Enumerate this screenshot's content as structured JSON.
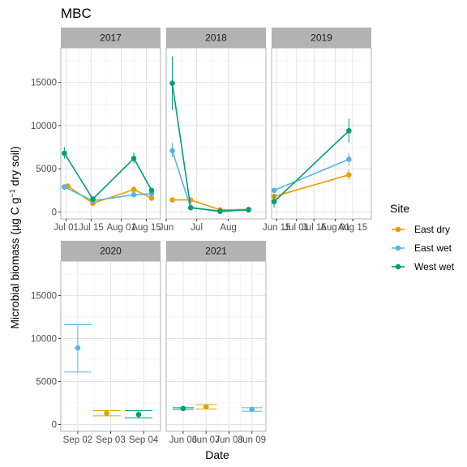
{
  "chart_data": {
    "type": "line",
    "title": "MBC",
    "xlabel": "Date",
    "ylabel": "Microbial biomass (µg C g⁻¹ dry soil)",
    "ylabel_parts": {
      "pre": "Microbial biomass (µg C g",
      "sup": "−1",
      "post": " dry soil)"
    },
    "ylim": [
      -800,
      19000
    ],
    "yticks": [
      0,
      5000,
      10000,
      15000
    ],
    "ytick_labels": [
      "0",
      "5000",
      "10000",
      "15000"
    ],
    "grid": true,
    "legend": {
      "title": "Site",
      "placement": "right",
      "entries": [
        {
          "name": "East dry",
          "color": "#E69F00"
        },
        {
          "name": "East wet",
          "color": "#56B4E9"
        },
        {
          "name": "West wet",
          "color": "#009E73"
        }
      ]
    },
    "colors": {
      "East dry": "#E69F00",
      "East wet": "#56B4E9",
      "West wet": "#009E73"
    },
    "panels": [
      {
        "label": "2017",
        "xlim": [
          0,
          56
        ],
        "xticks": [
          {
            "x": 3,
            "label": "Jul 01"
          },
          {
            "x": 17,
            "label": "Jul 15"
          },
          {
            "x": 34,
            "label": "Aug 01"
          },
          {
            "x": 48,
            "label": "Aug 15"
          }
        ],
        "series": [
          {
            "name": "East dry",
            "points": [
              {
                "x": 2,
                "y": 2900,
                "lo": 2600,
                "hi": 3200
              },
              {
                "x": 4,
                "y": 3000,
                "lo": 2700,
                "hi": 3300
              },
              {
                "x": 18,
                "y": 1000,
                "lo": 850,
                "hi": 1200
              },
              {
                "x": 41,
                "y": 2600,
                "lo": 2200,
                "hi": 3000
              },
              {
                "x": 51,
                "y": 1600,
                "lo": 1400,
                "hi": 1900
              }
            ]
          },
          {
            "name": "East wet",
            "points": [
              {
                "x": 2,
                "y": 2900,
                "lo": 2700,
                "hi": 3100
              },
              {
                "x": 18,
                "y": 1300,
                "lo": 1150,
                "hi": 1450
              },
              {
                "x": 41,
                "y": 2000,
                "lo": 1850,
                "hi": 2200
              },
              {
                "x": 51,
                "y": 2100,
                "lo": 1850,
                "hi": 2300
              }
            ]
          },
          {
            "name": "West wet",
            "points": [
              {
                "x": 2,
                "y": 6800,
                "lo": 6200,
                "hi": 7500
              },
              {
                "x": 18,
                "y": 1500,
                "lo": 1300,
                "hi": 1700
              },
              {
                "x": 41,
                "y": 6200,
                "lo": 5600,
                "hi": 6900
              },
              {
                "x": 51,
                "y": 2500,
                "lo": 2200,
                "hi": 2800
              }
            ]
          }
        ]
      },
      {
        "label": "2018",
        "xlim": [
          0,
          98
        ],
        "xticks": [
          {
            "x": 0,
            "label": "Jun"
          },
          {
            "x": 30,
            "label": "Jul"
          },
          {
            "x": 61,
            "label": "Aug"
          }
        ],
        "series": [
          {
            "name": "East dry",
            "points": [
              {
                "x": 6,
                "y": 1400,
                "lo": 1250,
                "hi": 1550
              },
              {
                "x": 24,
                "y": 1400,
                "lo": 1250,
                "hi": 1550
              },
              {
                "x": 53,
                "y": 250,
                "lo": 150,
                "hi": 350
              },
              {
                "x": 81,
                "y": 300,
                "lo": 200,
                "hi": 400
              }
            ]
          },
          {
            "name": "East wet",
            "points": [
              {
                "x": 6,
                "y": 7100,
                "lo": 6300,
                "hi": 8000
              },
              {
                "x": 24,
                "y": 500,
                "lo": 350,
                "hi": 650
              },
              {
                "x": 53,
                "y": 50,
                "lo": 0,
                "hi": 150
              },
              {
                "x": 81,
                "y": 300,
                "lo": 200,
                "hi": 450
              }
            ]
          },
          {
            "name": "West wet",
            "points": [
              {
                "x": 6,
                "y": 14900,
                "lo": 11800,
                "hi": 18000
              },
              {
                "x": 24,
                "y": 500,
                "lo": 350,
                "hi": 650
              },
              {
                "x": 53,
                "y": 100,
                "lo": 0,
                "hi": 200
              },
              {
                "x": 81,
                "y": 250,
                "lo": 150,
                "hi": 350
              }
            ]
          }
        ]
      },
      {
        "label": "2019",
        "xlim": [
          0,
          80
        ],
        "xticks": [
          {
            "x": 4,
            "label": "Jun 15"
          },
          {
            "x": 20,
            "label": "Jul 01"
          },
          {
            "x": 34,
            "label": "Jul 15"
          },
          {
            "x": 51,
            "label": "Aug 01"
          },
          {
            "x": 65,
            "label": "Aug 15"
          }
        ],
        "series": [
          {
            "name": "East dry",
            "points": [
              {
                "x": 2,
                "y": 1800,
                "lo": 1500,
                "hi": 2100
              },
              {
                "x": 62,
                "y": 4300,
                "lo": 3700,
                "hi": 4900
              }
            ]
          },
          {
            "name": "East wet",
            "points": [
              {
                "x": 2,
                "y": 2500,
                "lo": 2300,
                "hi": 2700
              },
              {
                "x": 62,
                "y": 6100,
                "lo": 5400,
                "hi": 6800
              }
            ]
          },
          {
            "name": "West wet",
            "points": [
              {
                "x": 2,
                "y": 1200,
                "lo": 500,
                "hi": 2000
              },
              {
                "x": 62,
                "y": 9400,
                "lo": 8000,
                "hi": 10800
              }
            ]
          }
        ]
      },
      {
        "label": "2020",
        "xlim": [
          0,
          10
        ],
        "xticks": [
          {
            "x": 1.7,
            "label": "Sep 02"
          },
          {
            "x": 5,
            "label": "Sep 03"
          },
          {
            "x": 8.3,
            "label": "Sep 04"
          }
        ],
        "series": [
          {
            "name": "East dry",
            "points": [
              {
                "x": 4.6,
                "y": 1300,
                "lo": 1000,
                "hi": 1600
              }
            ]
          },
          {
            "name": "East wet",
            "points": [
              {
                "x": 1.7,
                "y": 8900,
                "lo": 6100,
                "hi": 11600
              }
            ]
          },
          {
            "name": "West wet",
            "points": [
              {
                "x": 7.8,
                "y": 1150,
                "lo": 750,
                "hi": 1600
              }
            ]
          }
        ]
      },
      {
        "label": "2021",
        "xlim": [
          0,
          10
        ],
        "xticks": [
          {
            "x": 1.7,
            "label": "Jun 06"
          },
          {
            "x": 4,
            "label": "Jun 07"
          },
          {
            "x": 6.3,
            "label": "Jun 08"
          },
          {
            "x": 8.6,
            "label": "Jun 09"
          }
        ],
        "series": [
          {
            "name": "East dry",
            "points": [
              {
                "x": 4.0,
                "y": 2050,
                "lo": 1800,
                "hi": 2300
              }
            ]
          },
          {
            "name": "East wet",
            "points": [
              {
                "x": 8.6,
                "y": 1750,
                "lo": 1550,
                "hi": 1950
              }
            ]
          },
          {
            "name": "West wet",
            "points": [
              {
                "x": 1.7,
                "y": 1850,
                "lo": 1750,
                "hi": 1950
              }
            ]
          }
        ]
      }
    ]
  }
}
